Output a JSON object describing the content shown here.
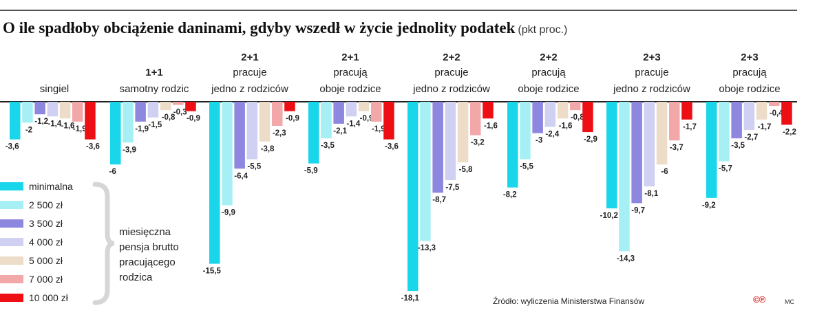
{
  "title": "O ile spadłoby obciążenie daninami, gdyby wszedł w życie jednolity podatek",
  "title_unit": "(pkt proc.)",
  "source": "Źródło: wyliczenia Ministerstwa Finansów",
  "logo": "©℗",
  "author": "MC",
  "legend_note": [
    "miesięczna",
    "pensja brutto",
    "pracującego",
    "rodzica"
  ],
  "chart_data": {
    "type": "bar",
    "title": "O ile spadłoby obciążenie daninami, gdyby wszedł w życie jednolity podatek",
    "ylabel": "pkt proc.",
    "ylim": [
      -18.5,
      0
    ],
    "grid": false,
    "legend_position": "bottom-left",
    "categories": [
      {
        "lines": [
          "",
          "",
          "singiel"
        ],
        "bold_first": false
      },
      {
        "lines": [
          "",
          "1+1",
          "samotny rodzic"
        ],
        "bold_first": true
      },
      {
        "lines": [
          "2+1",
          "pracuje",
          "jedno z rodziców"
        ],
        "bold_first": true
      },
      {
        "lines": [
          "2+1",
          "pracują",
          "oboje rodzice"
        ],
        "bold_first": true
      },
      {
        "lines": [
          "2+2",
          "pracuje",
          "jedno z rodziców"
        ],
        "bold_first": true
      },
      {
        "lines": [
          "2+2",
          "pracują",
          "oboje rodzice"
        ],
        "bold_first": true
      },
      {
        "lines": [
          "2+3",
          "pracuje",
          "jedno z rodziców"
        ],
        "bold_first": true
      },
      {
        "lines": [
          "2+3",
          "pracują",
          "oboje rodzice"
        ],
        "bold_first": true
      }
    ],
    "series": [
      {
        "name": "minimalna",
        "color": "#1ad6ea",
        "values": [
          -3.6,
          -6.0,
          -15.5,
          -5.9,
          -18.1,
          -8.2,
          -10.2,
          -9.2
        ]
      },
      {
        "name": "2 500 zł",
        "color": "#a6f0f5",
        "values": [
          -2,
          -3.9,
          -9.9,
          -3.5,
          -13.3,
          -5.5,
          -14.3,
          -5.7
        ]
      },
      {
        "name": "3 500 zł",
        "color": "#8d87df",
        "values": [
          -1.2,
          -1.9,
          -6.4,
          -2.1,
          -8.7,
          -3.0,
          -9.7,
          -3.5
        ]
      },
      {
        "name": "4 000 zł",
        "color": "#cfd0f2",
        "values": [
          -1.4,
          -1.5,
          -5.5,
          -1.4,
          -7.5,
          -2.4,
          -8.1,
          -2.7
        ]
      },
      {
        "name": "5 000 zł",
        "color": "#ecdcc8",
        "values": [
          -1.6,
          -0.8,
          -3.8,
          -0.9,
          -5.8,
          -1.6,
          -6.0,
          -1.7
        ]
      },
      {
        "name": "7 000 zł",
        "color": "#f2a7a9",
        "values": [
          -1.9,
          -0.3,
          -2.3,
          -1.9,
          -3.2,
          -0.8,
          -3.7,
          -0.4
        ]
      },
      {
        "name": "10 000 zł",
        "color": "#ee0f14",
        "values": [
          -3.6,
          -0.9,
          -0.9,
          -3.6,
          -1.6,
          -2.9,
          -1.7,
          -2.2
        ]
      }
    ]
  }
}
